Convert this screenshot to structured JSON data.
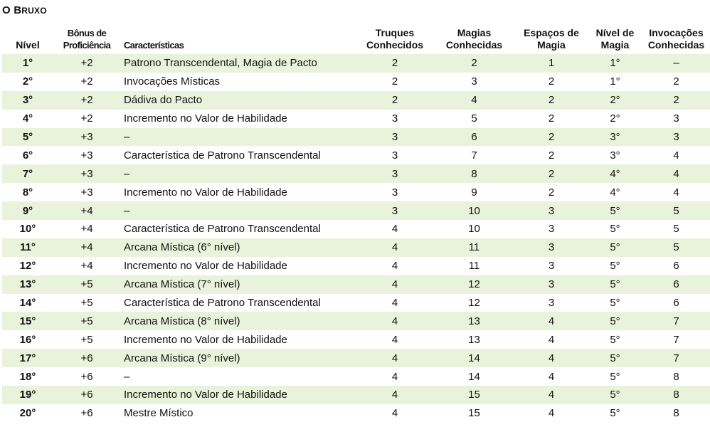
{
  "title": {
    "first": "O B",
    "rest": "RUXO"
  },
  "headers": {
    "level": "Nível",
    "prof_line1": "Bônus de",
    "prof_line2": "Proficiência",
    "features": "Características",
    "cantrips_line1": "Truques",
    "cantrips_line2": "Conhecidos",
    "spells_line1": "Magias",
    "spells_line2": "Conhecidas",
    "slots_line1": "Espaços de",
    "slots_line2": "Magia",
    "slotlvl_line1": "Nível de",
    "slotlvl_line2": "Magia",
    "inv_line1": "Invocações",
    "inv_line2": "Conhecidas"
  },
  "rows": [
    {
      "level": "1°",
      "prof": "+2",
      "features": "Patrono Transcendental, Magia de Pacto",
      "cantrips": "2",
      "spells": "2",
      "slots": "1",
      "slot_level": "1°",
      "invocations": "–"
    },
    {
      "level": "2°",
      "prof": "+2",
      "features": "Invocações Místicas",
      "cantrips": "2",
      "spells": "3",
      "slots": "2",
      "slot_level": "1°",
      "invocations": "2"
    },
    {
      "level": "3°",
      "prof": "+2",
      "features": "Dádiva do Pacto",
      "cantrips": "2",
      "spells": "4",
      "slots": "2",
      "slot_level": "2°",
      "invocations": "2"
    },
    {
      "level": "4°",
      "prof": "+2",
      "features": "Incremento no Valor de Habilidade",
      "cantrips": "3",
      "spells": "5",
      "slots": "2",
      "slot_level": "2°",
      "invocations": "3"
    },
    {
      "level": "5°",
      "prof": "+3",
      "features": "–",
      "cantrips": "3",
      "spells": "6",
      "slots": "2",
      "slot_level": "3°",
      "invocations": "3"
    },
    {
      "level": "6°",
      "prof": "+3",
      "features": "Característica de Patrono Transcendental",
      "cantrips": "3",
      "spells": "7",
      "slots": "2",
      "slot_level": "3°",
      "invocations": "4"
    },
    {
      "level": "7°",
      "prof": "+3",
      "features": "–",
      "cantrips": "3",
      "spells": "8",
      "slots": "2",
      "slot_level": "4°",
      "invocations": "4"
    },
    {
      "level": "8°",
      "prof": "+3",
      "features": "Incremento no Valor de Habilidade",
      "cantrips": "3",
      "spells": "9",
      "slots": "2",
      "slot_level": "4°",
      "invocations": "4"
    },
    {
      "level": "9°",
      "prof": "+4",
      "features": "–",
      "cantrips": "3",
      "spells": "10",
      "slots": "3",
      "slot_level": "5°",
      "invocations": "5"
    },
    {
      "level": "10°",
      "prof": "+4",
      "features": "Característica de Patrono Transcendental",
      "cantrips": "4",
      "spells": "10",
      "slots": "3",
      "slot_level": "5°",
      "invocations": "5"
    },
    {
      "level": "11°",
      "prof": "+4",
      "features": "Arcana Mística (6° nível)",
      "cantrips": "4",
      "spells": "11",
      "slots": "3",
      "slot_level": "5°",
      "invocations": "5"
    },
    {
      "level": "12°",
      "prof": "+4",
      "features": "Incremento no Valor de Habilidade",
      "cantrips": "4",
      "spells": "11",
      "slots": "3",
      "slot_level": "5°",
      "invocations": "6"
    },
    {
      "level": "13°",
      "prof": "+5",
      "features": "Arcana Mística (7° nível)",
      "cantrips": "4",
      "spells": "12",
      "slots": "3",
      "slot_level": "5°",
      "invocations": "6"
    },
    {
      "level": "14°",
      "prof": "+5",
      "features": "Característica de Patrono Transcendental",
      "cantrips": "4",
      "spells": "12",
      "slots": "3",
      "slot_level": "5°",
      "invocations": "6"
    },
    {
      "level": "15°",
      "prof": "+5",
      "features": "Arcana Mística (8° nível)",
      "cantrips": "4",
      "spells": "13",
      "slots": "4",
      "slot_level": "5°",
      "invocations": "7"
    },
    {
      "level": "16°",
      "prof": "+5",
      "features": "Incremento no Valor de Habilidade",
      "cantrips": "4",
      "spells": "13",
      "slots": "4",
      "slot_level": "5°",
      "invocations": "7"
    },
    {
      "level": "17°",
      "prof": "+6",
      "features": "Arcana Mística (9° nível)",
      "cantrips": "4",
      "spells": "14",
      "slots": "4",
      "slot_level": "5°",
      "invocations": "7"
    },
    {
      "level": "18°",
      "prof": "+6",
      "features": "–",
      "cantrips": "4",
      "spells": "14",
      "slots": "4",
      "slot_level": "5°",
      "invocations": "8"
    },
    {
      "level": "19°",
      "prof": "+6",
      "features": "Incremento no Valor de Habilidade",
      "cantrips": "4",
      "spells": "15",
      "slots": "4",
      "slot_level": "5°",
      "invocations": "8"
    },
    {
      "level": "20°",
      "prof": "+6",
      "features": "Mestre Místico",
      "cantrips": "4",
      "spells": "15",
      "slots": "4",
      "slot_level": "5°",
      "invocations": "8"
    }
  ],
  "colors": {
    "row_stripe": "#e9f2da",
    "text": "#111111"
  }
}
